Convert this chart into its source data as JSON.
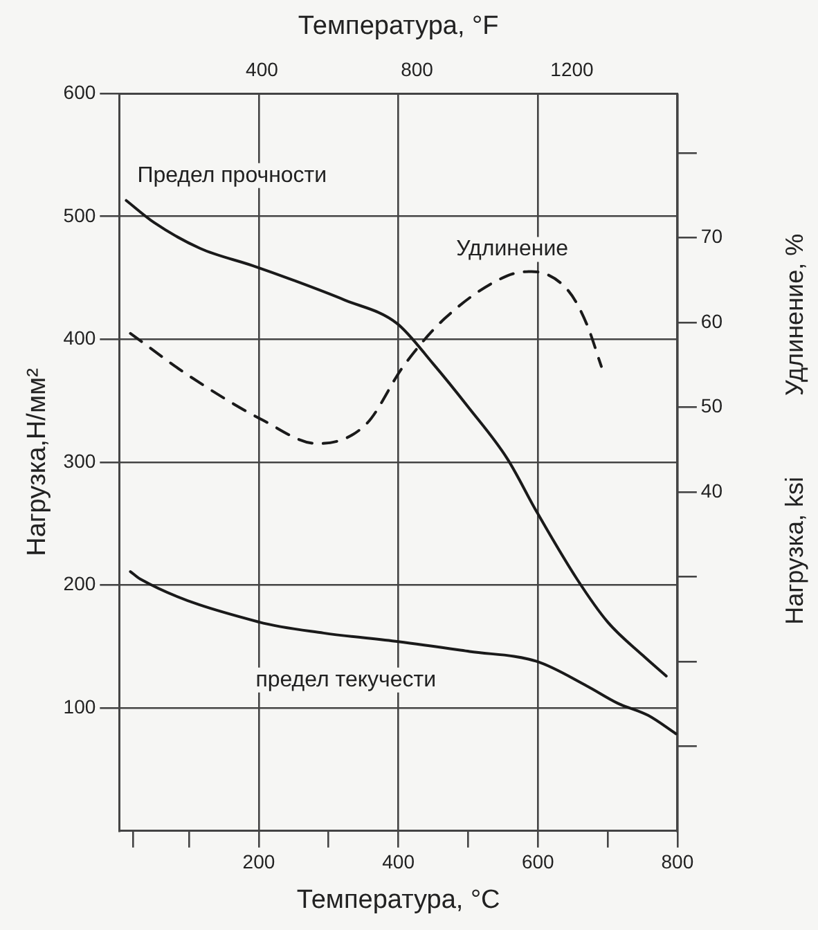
{
  "chart_data": {
    "type": "line",
    "xlabel": "Температура, °C",
    "x2label": "Температура, °F",
    "ylabel": "Нагрузка,Н/мм²",
    "y2label": "Удлинение, %",
    "y3label": "Нагрузка, ksi",
    "xlim": [
      0,
      800
    ],
    "xticks": [
      {
        "value": 20,
        "label": null
      },
      {
        "value": 100,
        "label": null
      },
      200,
      {
        "value": 300,
        "label": null
      },
      400,
      {
        "value": 500,
        "label": null
      },
      600,
      {
        "value": 700,
        "label": null
      },
      800
    ],
    "x2lim": [
      32,
      1472
    ],
    "x2ticks": [
      400,
      800,
      1200
    ],
    "ylim": [
      0,
      600
    ],
    "yticks": [
      100,
      200,
      300,
      400,
      500,
      600
    ],
    "y2lim": [
      0,
      87
    ],
    "y2ticks": [
      {
        "value": 10,
        "label": null
      },
      {
        "value": 20,
        "label": null
      },
      {
        "value": 30,
        "label": null
      },
      40,
      50,
      60,
      70,
      {
        "value": 80,
        "label": null
      }
    ],
    "grid": true,
    "marker": "none",
    "series": [
      {
        "name": "Предел прочности",
        "color": "#1a1a1a",
        "line_style": "solid",
        "x": [
          10,
          50,
          116,
          191,
          250,
          323,
          398,
          450,
          500,
          556,
          598,
          656,
          700,
          750,
          784
        ],
        "values": [
          513,
          495,
          474,
          460,
          448,
          432,
          413,
          380,
          345,
          303,
          260,
          205,
          170,
          143,
          126
        ]
      },
      {
        "name": "предел текучести",
        "color": "#1a1a1a",
        "line_style": "solid",
        "x": [
          16,
          30,
          200,
          293,
          400,
          502,
          598,
          670,
          714,
          758,
          798
        ],
        "values": [
          211,
          205,
          170,
          161,
          154,
          146,
          138,
          118,
          104,
          94,
          79
        ]
      },
      {
        "name": "Удлинение",
        "color": "#1a1a1a",
        "line_style": "dashed",
        "axis": "y2",
        "x": [
          16,
          100,
          205,
          284,
          354,
          407,
          467,
          556,
          591,
          644,
          670,
          691
        ],
        "values": [
          58.7,
          53.7,
          48.5,
          45.7,
          48,
          54.8,
          60.5,
          65.5,
          66,
          63.7,
          59.8,
          54.8
        ]
      }
    ]
  }
}
